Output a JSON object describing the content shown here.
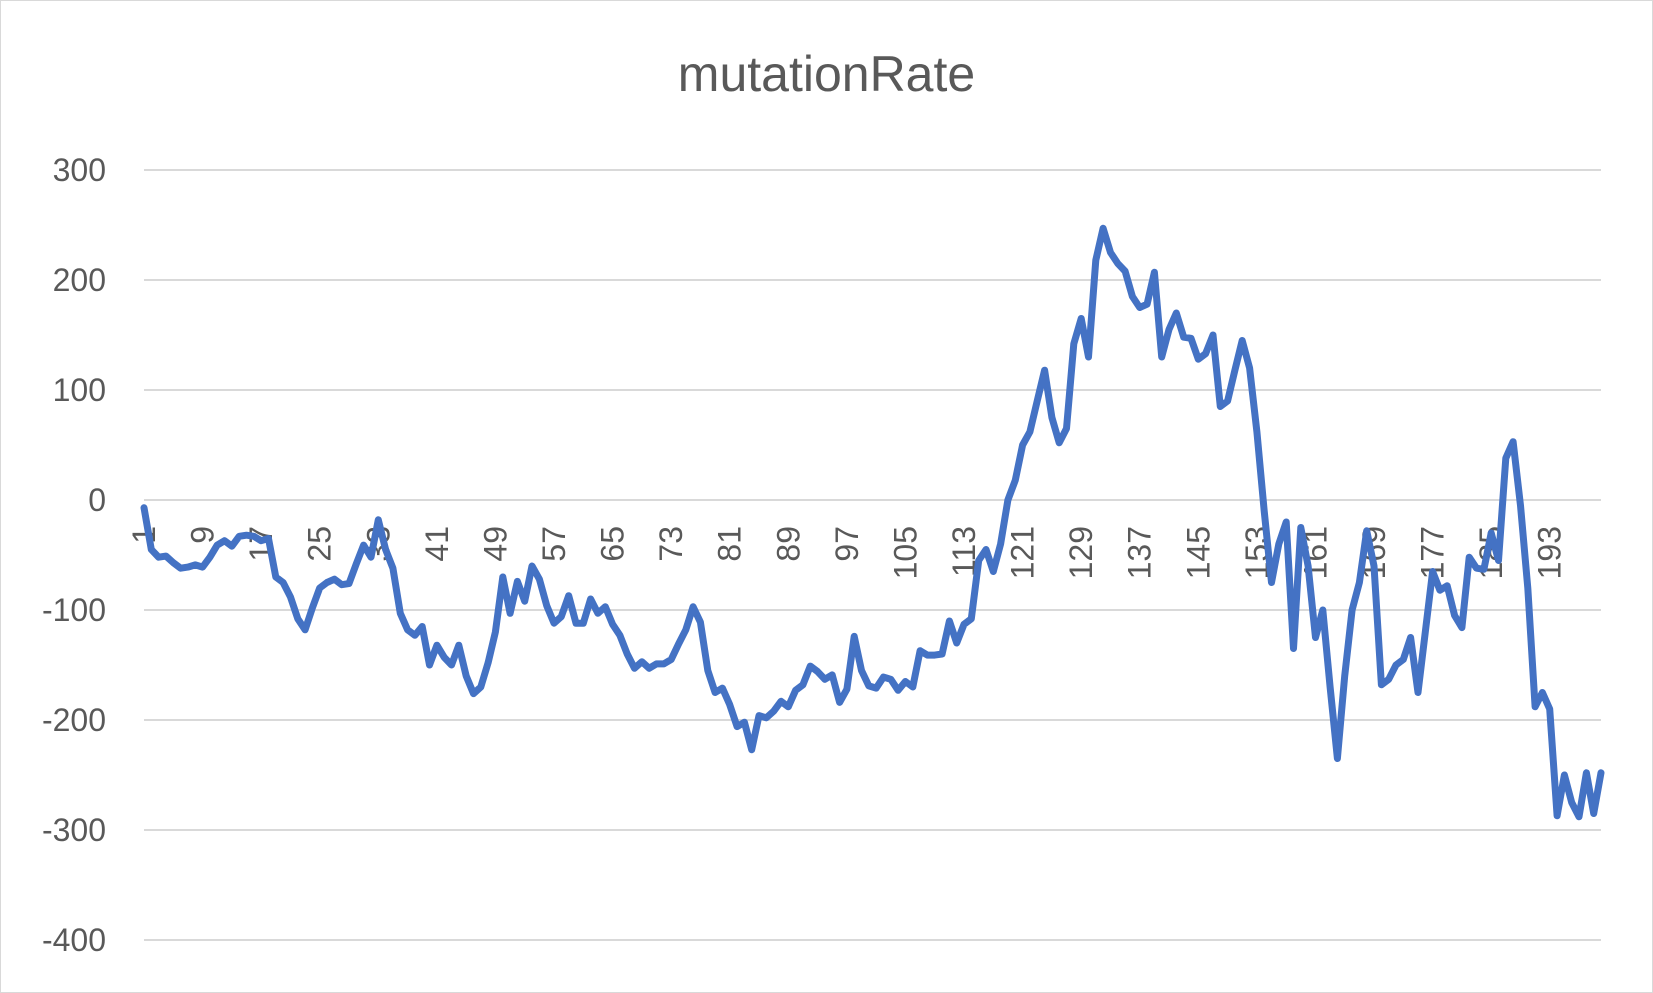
{
  "chart_data": {
    "type": "line",
    "title": "mutationRate",
    "xlabel": "",
    "ylabel": "",
    "ylim": [
      -400,
      300
    ],
    "yticks": [
      300,
      200,
      100,
      0,
      -100,
      -200,
      -300,
      -400
    ],
    "ytick_labels": [
      "300",
      "200",
      "100",
      "0",
      "-100",
      "-200",
      "-300",
      "-400"
    ],
    "xtick_values": [
      1,
      9,
      17,
      25,
      33,
      41,
      49,
      57,
      65,
      73,
      81,
      89,
      97,
      105,
      113,
      121,
      129,
      137,
      145,
      153,
      161,
      169,
      177,
      185,
      193
    ],
    "xtick_labels": [
      "1",
      "9",
      "17",
      "25",
      "33",
      "41",
      "49",
      "57",
      "65",
      "73",
      "81",
      "89",
      "97",
      "105",
      "113",
      "121",
      "129",
      "137",
      "145",
      "153",
      "161",
      "169",
      "177",
      "185",
      "193"
    ],
    "x_count": 200,
    "grid": true,
    "legend": "none",
    "color": "#4472c4",
    "series": [
      {
        "values": [
          -7,
          -45,
          -52,
          -51,
          -57,
          -62,
          -61,
          -59,
          -61,
          -52,
          -41,
          -37,
          -42,
          -33,
          -32,
          -33,
          -37,
          -35,
          -70,
          -75,
          -88,
          -108,
          -118,
          -98,
          -80,
          -75,
          -72,
          -77,
          -76,
          -58,
          -41,
          -52,
          -18,
          -45,
          -62,
          -103,
          -118,
          -123,
          -115,
          -150,
          -132,
          -143,
          -150,
          -132,
          -160,
          -176,
          -170,
          -148,
          -120,
          -70,
          -103,
          -74,
          -92,
          -60,
          -72,
          -96,
          -112,
          -106,
          -87,
          -112,
          -112,
          -90,
          -103,
          -97,
          -113,
          -123,
          -140,
          -153,
          -147,
          -153,
          -149,
          -149,
          -145,
          -131,
          -118,
          -97,
          -111,
          -155,
          -175,
          -171,
          -186,
          -206,
          -202,
          -227,
          -196,
          -198,
          -192,
          -183,
          -188,
          -173,
          -168,
          -151,
          -156,
          -163,
          -159,
          -184,
          -172,
          -124,
          -155,
          -169,
          -171,
          -161,
          -163,
          -173,
          -165,
          -170,
          -137,
          -141,
          -141,
          -140,
          -110,
          -130,
          -113,
          -108,
          -55,
          -45,
          -65,
          -40,
          0,
          18,
          50,
          62,
          90,
          118,
          75,
          52,
          65,
          142,
          165,
          130,
          218,
          247,
          225,
          215,
          208,
          185,
          175,
          178,
          207,
          130,
          155,
          170,
          148,
          147,
          128,
          133,
          150,
          85,
          90,
          118,
          145,
          120,
          62,
          -10,
          -75,
          -40,
          -20,
          -135,
          -25,
          -60,
          -125,
          -100,
          -170,
          -235,
          -160,
          -100,
          -75,
          -28,
          -60,
          -168,
          -163,
          -150,
          -145,
          -125,
          -175,
          -120,
          -65,
          -82,
          -78,
          -105,
          -116,
          -52,
          -62,
          -63,
          -30,
          -55,
          38,
          53,
          -5,
          -80,
          -188,
          -175,
          -190,
          -287,
          -250,
          -275,
          -288,
          -248,
          -285,
          -248
        ]
      }
    ]
  }
}
